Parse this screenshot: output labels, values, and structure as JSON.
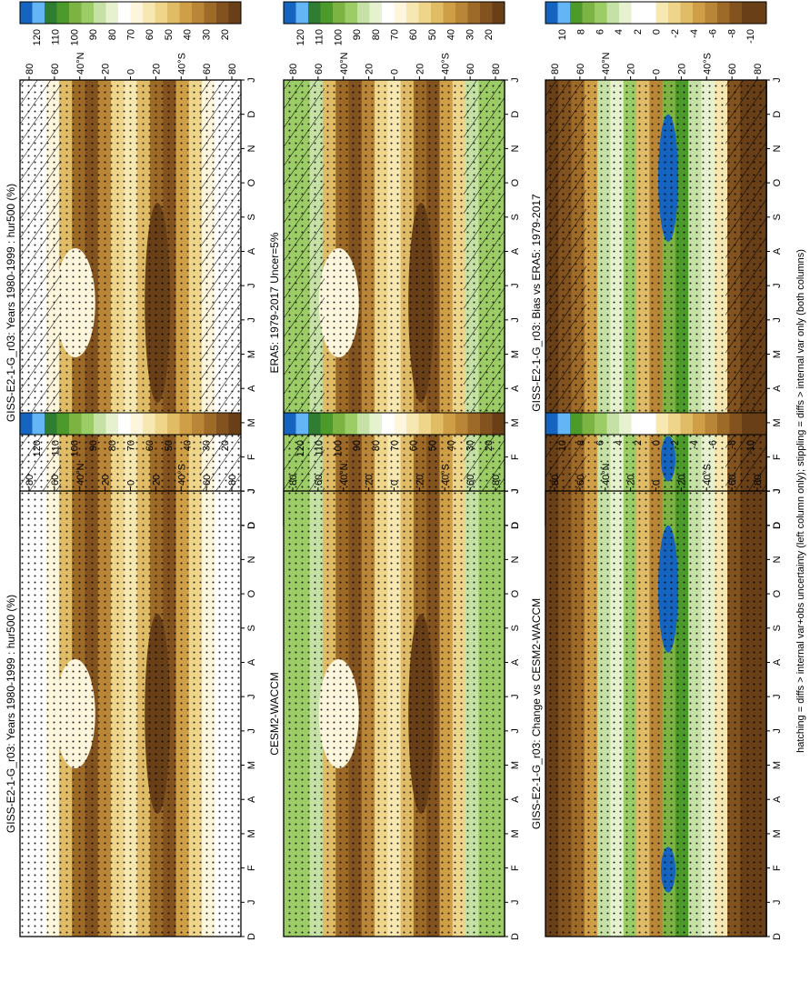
{
  "figure": {
    "footer": "hatching = diffs > internal var+obs uncertainty (left column only); stippling = diffs > internal var only (both columns)"
  },
  "chart_data": [
    {
      "type": "heatmap",
      "title": "GISS-E2-1-G_r03: Years 1980-1999 : hur500 (%)",
      "months": [
        "D",
        "J",
        "F",
        "M",
        "A",
        "M",
        "J",
        "J",
        "A",
        "S",
        "O",
        "N",
        "D",
        "J"
      ],
      "lat_ticks": [
        "80",
        "60",
        "40°N",
        "20",
        "0",
        "20",
        "40°S",
        "60",
        "80"
      ],
      "colorbar": [
        "120",
        "110",
        "100",
        "90",
        "80",
        "70",
        "60",
        "50",
        "40",
        "30",
        "20"
      ],
      "hatching": true,
      "stippling": true
    },
    {
      "type": "heatmap",
      "title": "GISS-E2-1-G_r03: Years 1980-1999 : hur500 (%)",
      "months": [
        "D",
        "J",
        "F",
        "M",
        "A",
        "M",
        "J",
        "J",
        "A",
        "S",
        "O",
        "N",
        "D",
        "J"
      ],
      "lat_ticks": [
        "80",
        "60",
        "40°N",
        "20",
        "0",
        "20",
        "40°S",
        "60",
        "80"
      ],
      "colorbar": [
        "120",
        "110",
        "100",
        "90",
        "80",
        "70",
        "60",
        "50",
        "40",
        "30",
        "20"
      ],
      "hatching": false,
      "stippling": true
    },
    {
      "type": "heatmap",
      "title": "ERA5: 1979-2017 Uncer=5%",
      "months": [
        "D",
        "J",
        "F",
        "M",
        "A",
        "M",
        "J",
        "J",
        "A",
        "S",
        "O",
        "N",
        "D",
        "J"
      ],
      "lat_ticks": [
        "80",
        "60",
        "40°N",
        "20",
        "0",
        "20",
        "40°S",
        "60",
        "80"
      ],
      "colorbar": [
        "120",
        "110",
        "100",
        "90",
        "80",
        "70",
        "60",
        "50",
        "40",
        "30",
        "20"
      ],
      "hatching": true,
      "stippling": true
    },
    {
      "type": "heatmap",
      "title": "CESM2-WACCM",
      "months": [
        "D",
        "J",
        "F",
        "M",
        "A",
        "M",
        "J",
        "J",
        "A",
        "S",
        "O",
        "N",
        "D",
        "J"
      ],
      "lat_ticks": [
        "80",
        "60",
        "40°N",
        "20",
        "0",
        "20",
        "40°S",
        "60",
        "80"
      ],
      "colorbar": [
        "120",
        "110",
        "100",
        "90",
        "80",
        "70",
        "60",
        "50",
        "40",
        "30",
        "20"
      ],
      "hatching": false,
      "stippling": true
    },
    {
      "type": "heatmap",
      "title": "GISS-E2-1-G_r03: Bias vs ERA5: 1979-2017",
      "months": [
        "D",
        "J",
        "F",
        "M",
        "A",
        "M",
        "J",
        "J",
        "A",
        "S",
        "O",
        "N",
        "D",
        "J"
      ],
      "lat_ticks": [
        "80",
        "60",
        "40°N",
        "20",
        "0",
        "20",
        "40°S",
        "60",
        "80"
      ],
      "colorbar": [
        "10",
        "8",
        "6",
        "4",
        "2",
        "0",
        "-2",
        "-4",
        "-6",
        "-8",
        "-10"
      ],
      "hatching": true,
      "stippling": true
    },
    {
      "type": "heatmap",
      "title": "GISS-E2-1-G_r03: Change vs CESM2-WACCM",
      "months": [
        "D",
        "J",
        "F",
        "M",
        "A",
        "M",
        "J",
        "J",
        "A",
        "S",
        "O",
        "N",
        "D",
        "J"
      ],
      "lat_ticks": [
        "80",
        "60",
        "40°N",
        "20",
        "0",
        "20",
        "40°S",
        "60",
        "80"
      ],
      "colorbar": [
        "10",
        "8",
        "6",
        "4",
        "2",
        "0",
        "-2",
        "-4",
        "-6",
        "-8",
        "-10"
      ],
      "hatching": false,
      "stippling": true
    }
  ],
  "colors": {
    "colorbar_scale": [
      "#1565c0",
      "#64b5f6",
      "#2e7d32",
      "#4c9a2a",
      "#7cb342",
      "#9ccc65",
      "#c5e1a5",
      "#e6f2cf",
      "#ffffff",
      "#fdf6dd",
      "#f6e8b0",
      "#eed58a",
      "#e0bc66",
      "#cf9f48",
      "#b98536",
      "#9e6a28",
      "#82531e",
      "#683f16"
    ]
  }
}
